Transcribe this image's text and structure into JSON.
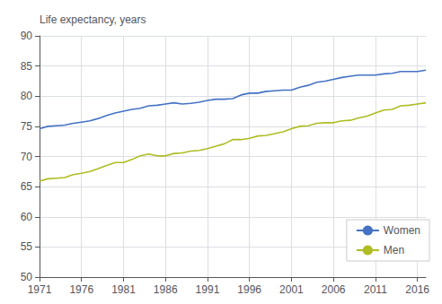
{
  "chart_data": {
    "type": "line",
    "ylabel": "Life expectancy, years",
    "x": [
      1971,
      1972,
      1973,
      1974,
      1975,
      1976,
      1977,
      1978,
      1979,
      1980,
      1981,
      1982,
      1983,
      1984,
      1985,
      1986,
      1987,
      1988,
      1989,
      1990,
      1991,
      1992,
      1993,
      1994,
      1995,
      1996,
      1997,
      1998,
      1999,
      2000,
      2001,
      2002,
      2003,
      2004,
      2005,
      2006,
      2007,
      2008,
      2009,
      2010,
      2011,
      2012,
      2013,
      2014,
      2015,
      2016,
      2017
    ],
    "series": [
      {
        "name": "Women",
        "color": "#4472c4",
        "values": [
          74.6,
          75.0,
          75.1,
          75.2,
          75.5,
          75.7,
          75.9,
          76.3,
          76.8,
          77.2,
          77.5,
          77.8,
          78.0,
          78.4,
          78.5,
          78.7,
          78.9,
          78.7,
          78.8,
          79.0,
          79.3,
          79.5,
          79.5,
          79.6,
          80.2,
          80.5,
          80.5,
          80.8,
          80.9,
          81.0,
          81.0,
          81.5,
          81.8,
          82.3,
          82.5,
          82.8,
          83.1,
          83.3,
          83.5,
          83.5,
          83.5,
          83.7,
          83.8,
          84.1,
          84.1,
          84.1,
          84.3
        ]
      },
      {
        "name": "Men",
        "color": "#afbc22",
        "values": [
          65.9,
          66.3,
          66.4,
          66.5,
          67.0,
          67.2,
          67.5,
          68.0,
          68.5,
          69.0,
          69.0,
          69.5,
          70.1,
          70.4,
          70.1,
          70.1,
          70.5,
          70.6,
          70.9,
          71.0,
          71.3,
          71.7,
          72.1,
          72.8,
          72.8,
          73.0,
          73.4,
          73.5,
          73.8,
          74.1,
          74.6,
          75.0,
          75.1,
          75.5,
          75.6,
          75.6,
          75.9,
          76.0,
          76.4,
          76.7,
          77.2,
          77.7,
          77.8,
          78.4,
          78.5,
          78.7,
          78.9
        ]
      }
    ],
    "xlim": [
      1971,
      2017
    ],
    "xticks": [
      1971,
      1976,
      1981,
      1986,
      1991,
      1996,
      2001,
      2006,
      2011,
      2016
    ],
    "ylim": [
      50,
      90
    ],
    "yticks": [
      50,
      55,
      60,
      65,
      70,
      75,
      80,
      85,
      90
    ],
    "grid": true,
    "legend": "lower right"
  }
}
